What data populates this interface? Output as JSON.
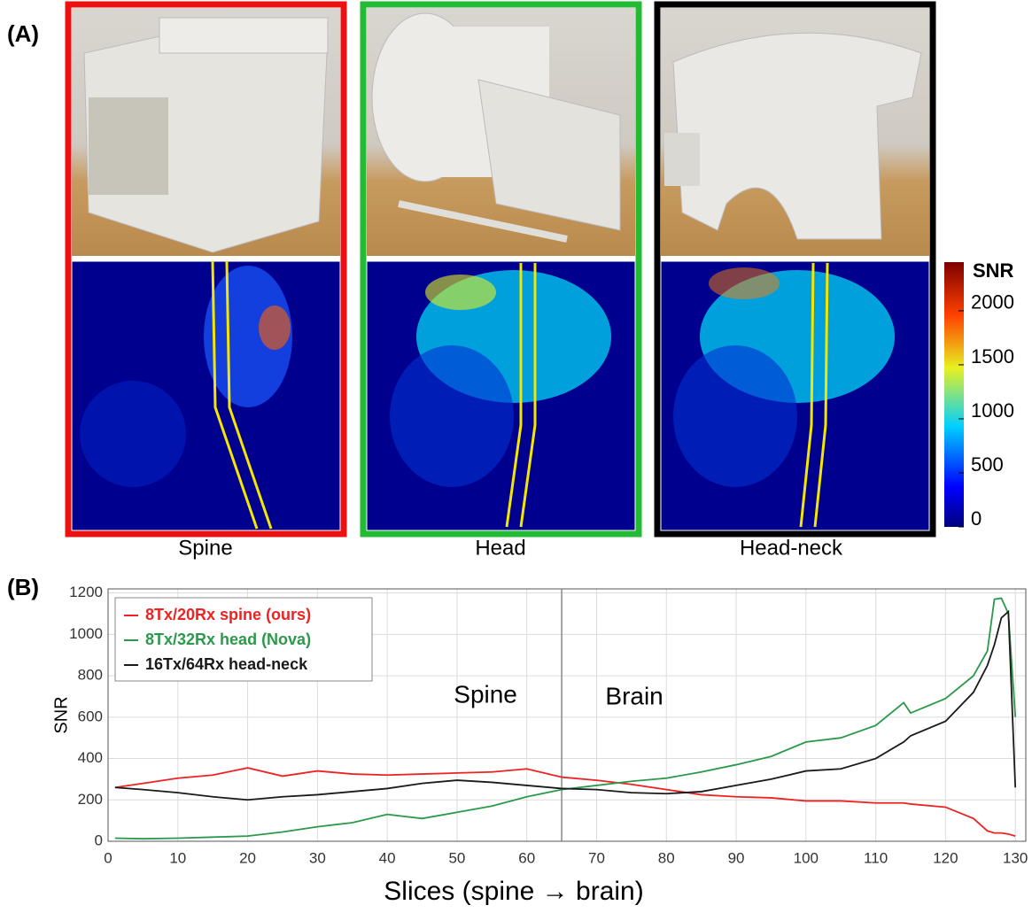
{
  "panel_a": {
    "label": "(A)",
    "captions": [
      "Spine",
      "Head",
      "Head-neck"
    ],
    "colorbar": {
      "title": "SNR",
      "lim": [
        0,
        2450
      ],
      "ticks": [
        0,
        500,
        1000,
        1500,
        2000
      ]
    }
  },
  "panel_b_label": "(B)",
  "chart_data": {
    "type": "line",
    "xlabel": "Slices (spine → brain)",
    "ylabel": "SNR",
    "annotations": [
      "Spine",
      "Brain"
    ],
    "vline": 65,
    "x": [
      1,
      5,
      10,
      15,
      20,
      25,
      30,
      35,
      40,
      45,
      50,
      55,
      60,
      65,
      70,
      75,
      80,
      85,
      90,
      95,
      100,
      105,
      110,
      114,
      115,
      120,
      124,
      126,
      127,
      128,
      129,
      130
    ],
    "series": [
      {
        "name": "8Tx/20Rx spine (ours)",
        "color": "#ee2222",
        "values": [
          260,
          280,
          305,
          320,
          355,
          315,
          340,
          325,
          320,
          325,
          330,
          335,
          350,
          310,
          295,
          275,
          250,
          225,
          215,
          210,
          195,
          195,
          185,
          185,
          180,
          165,
          110,
          50,
          40,
          40,
          35,
          25
        ]
      },
      {
        "name": "8Tx/32Rx head (Nova)",
        "color": "#2a9a4a",
        "values": [
          15,
          12,
          15,
          20,
          25,
          45,
          70,
          90,
          130,
          110,
          140,
          170,
          215,
          250,
          270,
          290,
          305,
          335,
          370,
          410,
          480,
          500,
          560,
          670,
          620,
          690,
          800,
          920,
          1170,
          1175,
          1100,
          600
        ]
      },
      {
        "name": "16Tx/64Rx head-neck",
        "color": "#1a1a1a",
        "values": [
          260,
          250,
          235,
          215,
          200,
          215,
          225,
          240,
          255,
          280,
          295,
          285,
          270,
          255,
          250,
          235,
          230,
          240,
          270,
          300,
          340,
          350,
          400,
          480,
          510,
          580,
          720,
          850,
          950,
          1080,
          1110,
          260
        ]
      }
    ],
    "xlim": [
      0,
      131.5
    ],
    "ylim": [
      0,
      1220
    ],
    "xticks": [
      0,
      10,
      20,
      30,
      40,
      50,
      60,
      70,
      80,
      90,
      100,
      110,
      120,
      130
    ],
    "yticks": [
      0,
      200,
      400,
      600,
      800,
      1000,
      1200
    ],
    "grid": true,
    "legend": "upper left"
  }
}
